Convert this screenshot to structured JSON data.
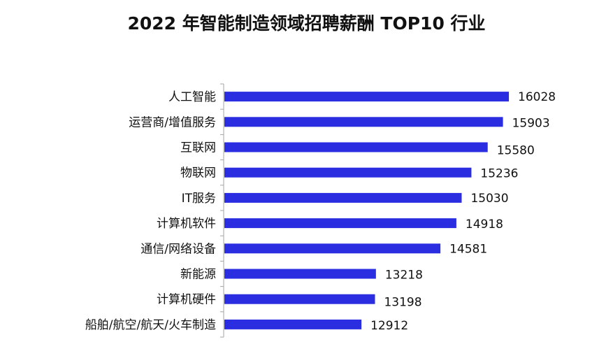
{
  "chart_data": {
    "type": "bar",
    "orientation": "horizontal",
    "title": "2022 年智能制造领域招聘薪酬 TOP10 行业",
    "categories": [
      "人工智能",
      "运营商/增值服务",
      "互联网",
      "物联网",
      "IT服务",
      "计算机软件",
      "通信/网络设备",
      "新能源",
      "计算机硬件",
      "船舶/航空/航天/火车制造"
    ],
    "values": [
      16028,
      15903,
      15580,
      15236,
      15030,
      14918,
      14581,
      13218,
      13198,
      12912
    ],
    "xlim": [
      10000,
      16500
    ],
    "bar_color": "#2b2de0",
    "axis_color": "#a6a6a6",
    "grid": false,
    "legend": "none"
  }
}
